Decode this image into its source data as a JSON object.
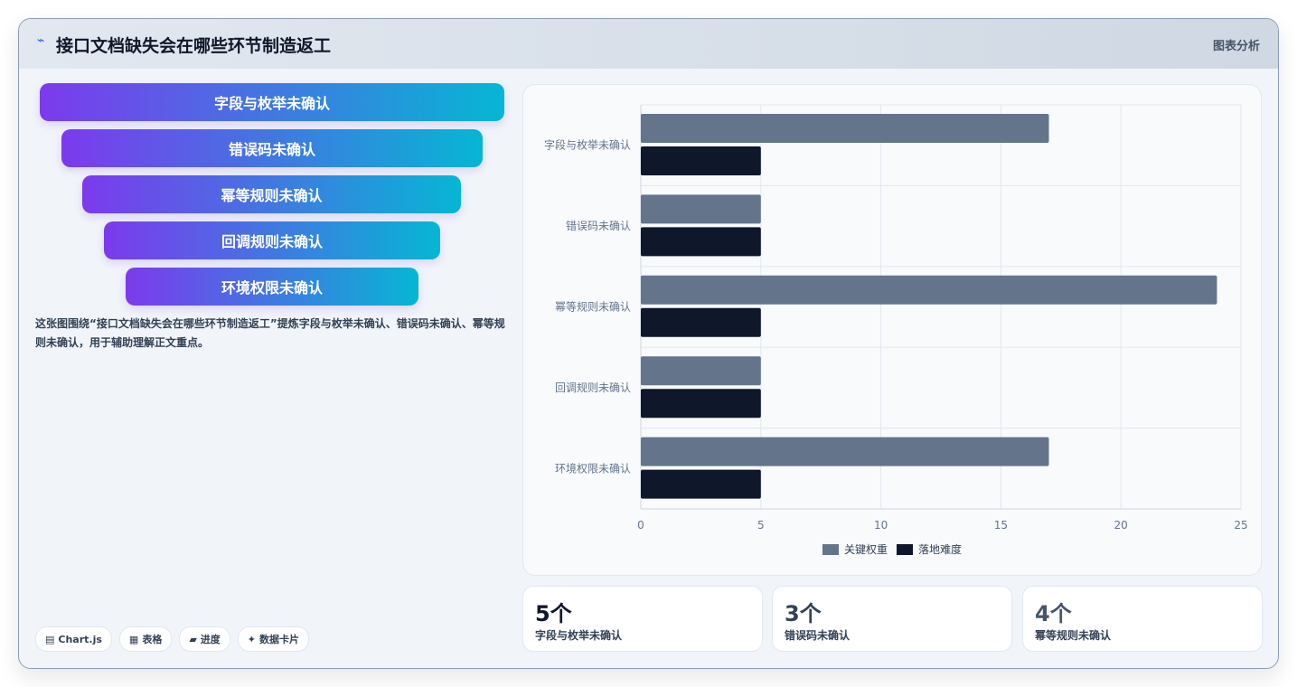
{
  "header": {
    "icon": "trend-line-icon",
    "title": "接口文档缺失会在哪些环节制造返工",
    "tag": "图表分析"
  },
  "funnel": {
    "items": [
      {
        "label": "字段与枚举未确认"
      },
      {
        "label": "错误码未确认"
      },
      {
        "label": "幂等规则未确认"
      },
      {
        "label": "回调规则未确认"
      },
      {
        "label": "环境权限未确认"
      }
    ],
    "gradient_from": "#7c3aed",
    "gradient_to": "#06b6d4"
  },
  "description": "这张图围绕“接口文档缺失会在哪些环节制造返工”提炼字段与枚举未确认、错误码未确认、幂等规则未确认，用于辅助理解正文重点。",
  "chips": [
    {
      "icon": "chart-icon",
      "label": "Chart.js"
    },
    {
      "icon": "table-icon",
      "label": "表格"
    },
    {
      "icon": "progress-icon",
      "label": "进度"
    },
    {
      "icon": "sparkle-icon",
      "label": "数据卡片"
    }
  ],
  "chart_data": {
    "type": "bar",
    "orientation": "horizontal",
    "categories": [
      "字段与枚举未确认",
      "错误码未确认",
      "幂等规则未确认",
      "回调规则未确认",
      "环境权限未确认"
    ],
    "series": [
      {
        "name": "关键权重",
        "values": [
          17,
          5,
          24,
          5,
          17
        ],
        "color": "#64748b"
      },
      {
        "name": "落地难度",
        "values": [
          5,
          5,
          5,
          5,
          5
        ],
        "color": "#0f172a"
      }
    ],
    "x_ticks": [
      "0",
      "5",
      "10",
      "15",
      "20",
      "25"
    ],
    "xlim": [
      0,
      25
    ],
    "grid": true,
    "legend_position": "bottom"
  },
  "stats": [
    {
      "value": "5个",
      "label": "字段与枚举未确认",
      "color": "#0f172a"
    },
    {
      "value": "3个",
      "label": "错误码未确认",
      "color": "#334155"
    },
    {
      "value": "4个",
      "label": "幂等规则未确认",
      "color": "#475569"
    }
  ]
}
